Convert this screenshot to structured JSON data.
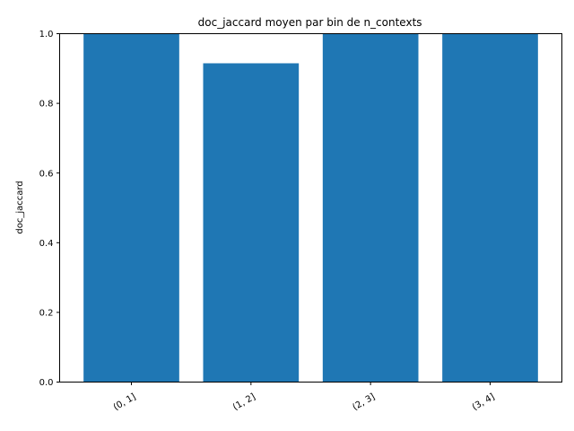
{
  "chart_data": {
    "type": "bar",
    "title": "doc_jaccard moyen par bin de n_contexts",
    "xlabel": "",
    "ylabel": "doc_jaccard",
    "categories": [
      "(0, 1]",
      "(1, 2]",
      "(2, 3]",
      "(3, 4]"
    ],
    "values": [
      1.0,
      0.915,
      1.0,
      1.0
    ],
    "ylim": [
      0,
      1.0
    ],
    "yticks": [
      0.0,
      0.2,
      0.4,
      0.6,
      0.8,
      1.0
    ],
    "ytick_labels": [
      "0.0",
      "0.2",
      "0.4",
      "0.6",
      "0.8",
      "1.0"
    ],
    "grid": false,
    "bar_color": "#1f77b4"
  }
}
